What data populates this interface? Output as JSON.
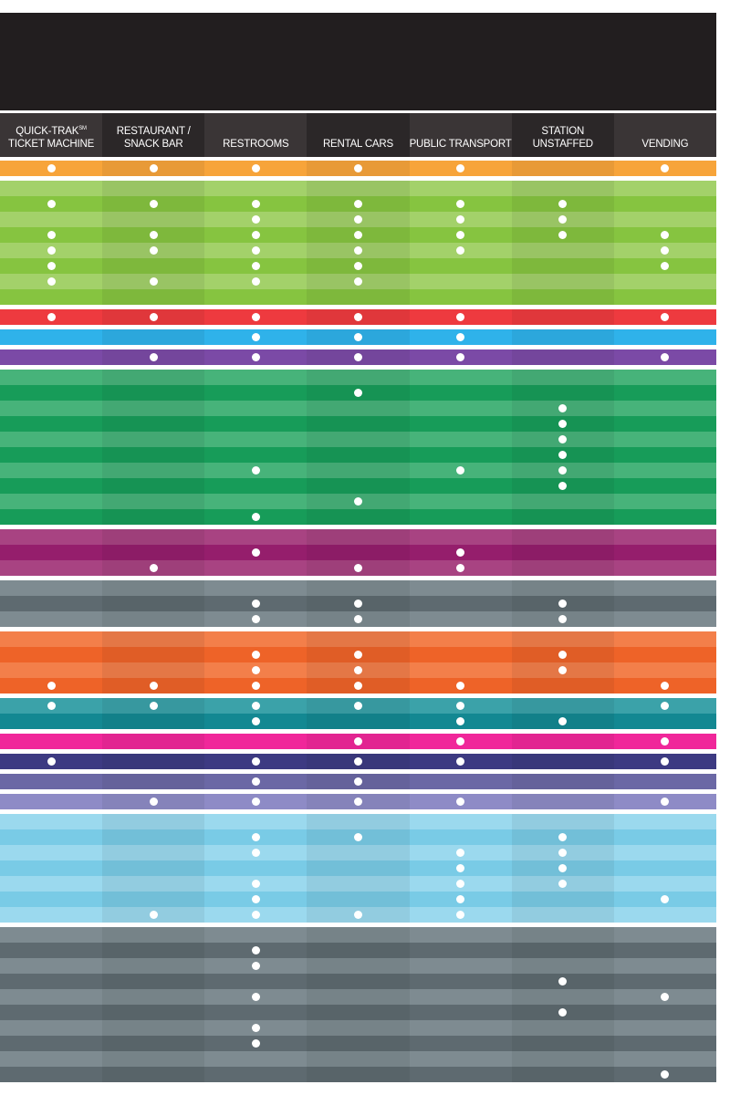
{
  "columns": [
    {
      "id": "quick-trak",
      "lines": [
        "QUICK-TRAK",
        "TICKET MACHINE"
      ],
      "superscript": "SM"
    },
    {
      "id": "restaurant",
      "lines": [
        "RESTAURANT /",
        "SNACK BAR"
      ]
    },
    {
      "id": "restrooms",
      "lines": [
        "RESTROOMS"
      ]
    },
    {
      "id": "rental-cars",
      "lines": [
        "RENTAL CARS"
      ]
    },
    {
      "id": "public-transport",
      "lines": [
        "PUBLIC TRANSPORT"
      ]
    },
    {
      "id": "station-unstaffed",
      "lines": [
        "STATION",
        "UNSTAFFED"
      ]
    },
    {
      "id": "vending",
      "lines": [
        "VENDING"
      ]
    }
  ],
  "header_colors": [
    "#3a3536",
    "#2b2728",
    "#3a3536",
    "#2b2728",
    "#3a3536",
    "#2b2728",
    "#3a3536"
  ],
  "groups": [
    {
      "name": "orange",
      "colors": [
        "#f7a43a",
        "#f39a2a"
      ],
      "rows": [
        [
          1,
          1,
          1,
          1,
          1,
          0,
          1
        ]
      ]
    },
    {
      "name": "lime",
      "colors": [
        "#a3d16a",
        "#86c440"
      ],
      "rows": [
        [
          0,
          0,
          0,
          0,
          0,
          0,
          0
        ],
        [
          1,
          1,
          1,
          1,
          1,
          1,
          0
        ],
        [
          0,
          0,
          1,
          1,
          1,
          1,
          0
        ],
        [
          1,
          1,
          1,
          1,
          1,
          1,
          1
        ],
        [
          1,
          1,
          1,
          1,
          1,
          0,
          1
        ],
        [
          1,
          0,
          1,
          1,
          0,
          0,
          1
        ],
        [
          1,
          1,
          1,
          1,
          0,
          0,
          0
        ],
        [
          0,
          0,
          0,
          0,
          0,
          0,
          0
        ]
      ]
    },
    {
      "name": "red",
      "colors": [
        "#ee3a3f",
        "#e2252d"
      ],
      "rows": [
        [
          1,
          1,
          1,
          1,
          1,
          0,
          1
        ]
      ]
    },
    {
      "name": "sky",
      "colors": [
        "#2fb2ea",
        "#1ea3de"
      ],
      "rows": [
        [
          0,
          0,
          1,
          1,
          1,
          0,
          0
        ]
      ]
    },
    {
      "name": "violet",
      "colors": [
        "#7b4aa6",
        "#6c3597"
      ],
      "rows": [
        [
          0,
          1,
          1,
          1,
          1,
          0,
          1
        ]
      ]
    },
    {
      "name": "green",
      "colors": [
        "#47b37a",
        "#179c59"
      ],
      "rows": [
        [
          0,
          0,
          0,
          0,
          0,
          0,
          0
        ],
        [
          0,
          0,
          0,
          1,
          0,
          0,
          0
        ],
        [
          0,
          0,
          0,
          0,
          0,
          1,
          0
        ],
        [
          0,
          0,
          0,
          0,
          0,
          1,
          0
        ],
        [
          0,
          0,
          0,
          0,
          0,
          1,
          0
        ],
        [
          0,
          0,
          0,
          0,
          0,
          1,
          0
        ],
        [
          0,
          0,
          1,
          0,
          1,
          1,
          0
        ],
        [
          0,
          0,
          0,
          0,
          0,
          1,
          0
        ],
        [
          0,
          0,
          0,
          1,
          0,
          0,
          0
        ],
        [
          0,
          0,
          1,
          0,
          0,
          0,
          0
        ]
      ]
    },
    {
      "name": "plum",
      "colors": [
        "#a84382",
        "#951e6c"
      ],
      "rows": [
        [
          0,
          0,
          0,
          0,
          0,
          0,
          0
        ],
        [
          0,
          0,
          1,
          0,
          1,
          0,
          0
        ],
        [
          0,
          1,
          0,
          1,
          1,
          0,
          0
        ]
      ]
    },
    {
      "name": "slate",
      "colors": [
        "#7e8b91",
        "#5e6a70"
      ],
      "rows": [
        [
          0,
          0,
          0,
          0,
          0,
          0,
          0
        ],
        [
          0,
          0,
          1,
          1,
          0,
          1,
          0
        ],
        [
          0,
          0,
          1,
          1,
          0,
          1,
          0
        ]
      ]
    },
    {
      "name": "tangerine",
      "colors": [
        "#f37f4a",
        "#ee6328"
      ],
      "rows": [
        [
          0,
          0,
          0,
          0,
          0,
          0,
          0
        ],
        [
          0,
          0,
          1,
          1,
          0,
          1,
          0
        ],
        [
          0,
          0,
          1,
          1,
          0,
          1,
          0
        ],
        [
          1,
          1,
          1,
          1,
          1,
          0,
          1
        ]
      ]
    },
    {
      "name": "teal",
      "colors": [
        "#3ba2a9",
        "#138892"
      ],
      "rows": [
        [
          1,
          1,
          1,
          1,
          1,
          0,
          1
        ],
        [
          0,
          0,
          1,
          0,
          1,
          1,
          0
        ]
      ]
    },
    {
      "name": "magenta",
      "colors": [
        "#f0279a",
        "#e8108c"
      ],
      "rows": [
        [
          0,
          0,
          0,
          1,
          1,
          0,
          1
        ]
      ]
    },
    {
      "name": "navy",
      "colors": [
        "#3d3a82",
        "#2e2b73"
      ],
      "rows": [
        [
          1,
          0,
          1,
          1,
          1,
          0,
          1
        ]
      ]
    },
    {
      "name": "dusk",
      "colors": [
        "#6b68a5",
        "#5a5896"
      ],
      "rows": [
        [
          0,
          0,
          1,
          1,
          0,
          0,
          0
        ]
      ]
    },
    {
      "name": "lavender",
      "colors": [
        "#8e8bc6",
        "#7f7dba"
      ],
      "rows": [
        [
          0,
          1,
          1,
          1,
          1,
          0,
          1
        ]
      ]
    },
    {
      "name": "ice",
      "colors": [
        "#9bd9ee",
        "#79cbe6"
      ],
      "rows": [
        [
          0,
          0,
          0,
          0,
          0,
          0,
          0
        ],
        [
          0,
          0,
          1,
          1,
          0,
          1,
          0
        ],
        [
          0,
          0,
          1,
          0,
          1,
          1,
          0
        ],
        [
          0,
          0,
          0,
          0,
          1,
          1,
          0
        ],
        [
          0,
          0,
          1,
          0,
          1,
          1,
          0
        ],
        [
          0,
          0,
          1,
          0,
          1,
          0,
          1
        ],
        [
          0,
          1,
          1,
          1,
          1,
          0,
          0
        ]
      ]
    },
    {
      "name": "graphite",
      "colors": [
        "#7e8b91",
        "#5e6a70"
      ],
      "rows": [
        [
          0,
          0,
          0,
          0,
          0,
          0,
          0
        ],
        [
          0,
          0,
          1,
          0,
          0,
          0,
          0
        ],
        [
          0,
          0,
          1,
          0,
          0,
          0,
          0
        ],
        [
          0,
          0,
          0,
          0,
          0,
          1,
          0
        ],
        [
          0,
          0,
          1,
          0,
          0,
          0,
          1
        ],
        [
          0,
          0,
          0,
          0,
          0,
          1,
          0
        ],
        [
          0,
          0,
          1,
          0,
          0,
          0,
          0
        ],
        [
          0,
          0,
          1,
          0,
          0,
          0,
          0
        ],
        [
          0,
          0,
          0,
          0,
          0,
          0,
          0
        ],
        [
          0,
          0,
          0,
          0,
          0,
          0,
          1
        ]
      ]
    }
  ]
}
